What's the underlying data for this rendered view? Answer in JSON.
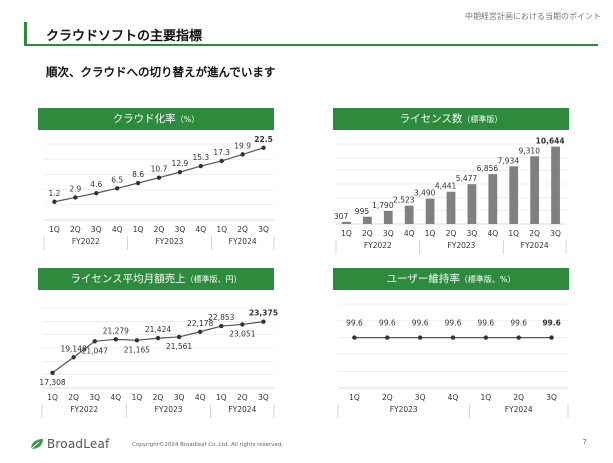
{
  "header": {
    "note": "中期経営計画における当期のポイント",
    "title": "クラウドソフトの主要指標",
    "subtitle": "順次、クラウドへの切り替えが進んでいます"
  },
  "colors": {
    "accent": "#2e8b3e",
    "bar": "#808080",
    "line": "#555555"
  },
  "panels": [
    {
      "title": "クラウド化率",
      "title_sub": "（%）"
    },
    {
      "title": "ライセンス数",
      "title_sub": "（標準版）"
    },
    {
      "title": "ライセンス平均月額売上",
      "title_sub": "（標準版、円）"
    },
    {
      "title": "ユーザー維持率",
      "title_sub": "（標準版、%）"
    }
  ],
  "chart_data": [
    {
      "type": "line",
      "title": "クラウド化率（%）",
      "categories": [
        "1Q",
        "2Q",
        "3Q",
        "4Q",
        "1Q",
        "2Q",
        "3Q",
        "4Q",
        "1Q",
        "2Q",
        "3Q"
      ],
      "value_labels": [
        "1.2",
        "2.9",
        "4.6",
        "6.5",
        "8.6",
        "10.7",
        "12.9",
        "15.3",
        "17.3",
        "19.9",
        "22.5"
      ],
      "values": [
        1.2,
        2.9,
        4.6,
        6.5,
        8.6,
        10.7,
        12.9,
        15.3,
        17.3,
        19.9,
        22.5
      ],
      "groups": [
        {
          "label": "FY2022",
          "count": 4
        },
        {
          "label": "FY2023",
          "count": 4
        },
        {
          "label": "FY2024",
          "count": 3
        }
      ],
      "grid": true
    },
    {
      "type": "bar",
      "title": "ライセンス数（標準版）",
      "categories": [
        "1Q",
        "2Q",
        "3Q",
        "4Q",
        "1Q",
        "2Q",
        "3Q",
        "4Q",
        "1Q",
        "2Q",
        "3Q"
      ],
      "value_labels": [
        "307",
        "995",
        "1,790",
        "2,523",
        "3,490",
        "4,441",
        "5,477",
        "6,856",
        "7,934",
        "9,310",
        "10,644"
      ],
      "values": [
        307,
        995,
        1790,
        2523,
        3490,
        4441,
        5477,
        6856,
        7934,
        9310,
        10644
      ],
      "groups": [
        {
          "label": "FY2022",
          "count": 4
        },
        {
          "label": "FY2023",
          "count": 4
        },
        {
          "label": "FY2024",
          "count": 3
        }
      ],
      "grid": true
    },
    {
      "type": "line",
      "title": "ライセンス平均月額売上（標準版、円）",
      "categories": [
        "1Q",
        "2Q",
        "3Q",
        "4Q",
        "1Q",
        "2Q",
        "3Q",
        "4Q",
        "1Q",
        "2Q",
        "3Q"
      ],
      "value_labels": [
        "17,308",
        "19,148",
        "21,047",
        "21,279",
        "21,165",
        "21,424",
        "21,561",
        "22,178",
        "22,853",
        "23,051",
        "23,375"
      ],
      "values": [
        17308,
        19148,
        21047,
        21279,
        21165,
        21424,
        21561,
        22178,
        22853,
        23051,
        23375
      ],
      "groups": [
        {
          "label": "FY2022",
          "count": 4
        },
        {
          "label": "FY2023",
          "count": 4
        },
        {
          "label": "FY2024",
          "count": 3
        }
      ],
      "grid": true
    },
    {
      "type": "line",
      "title": "ユーザー維持率（標準版、%）",
      "categories": [
        "1Q",
        "2Q",
        "3Q",
        "4Q",
        "1Q",
        "2Q",
        "3Q"
      ],
      "value_labels": [
        "99.6",
        "99.6",
        "99.6",
        "99.6",
        "99.6",
        "99.6",
        "99.6"
      ],
      "values": [
        99.6,
        99.6,
        99.6,
        99.6,
        99.6,
        99.6,
        99.6
      ],
      "groups": [
        {
          "label": "FY2023",
          "count": 4
        },
        {
          "label": "FY2024",
          "count": 3
        }
      ],
      "grid": true
    }
  ],
  "footer": {
    "brand": "BroadLeaf",
    "copyright": "Copyright©2024 Broadleaf Co.,Ltd. All rights reserved.",
    "page": "7"
  }
}
